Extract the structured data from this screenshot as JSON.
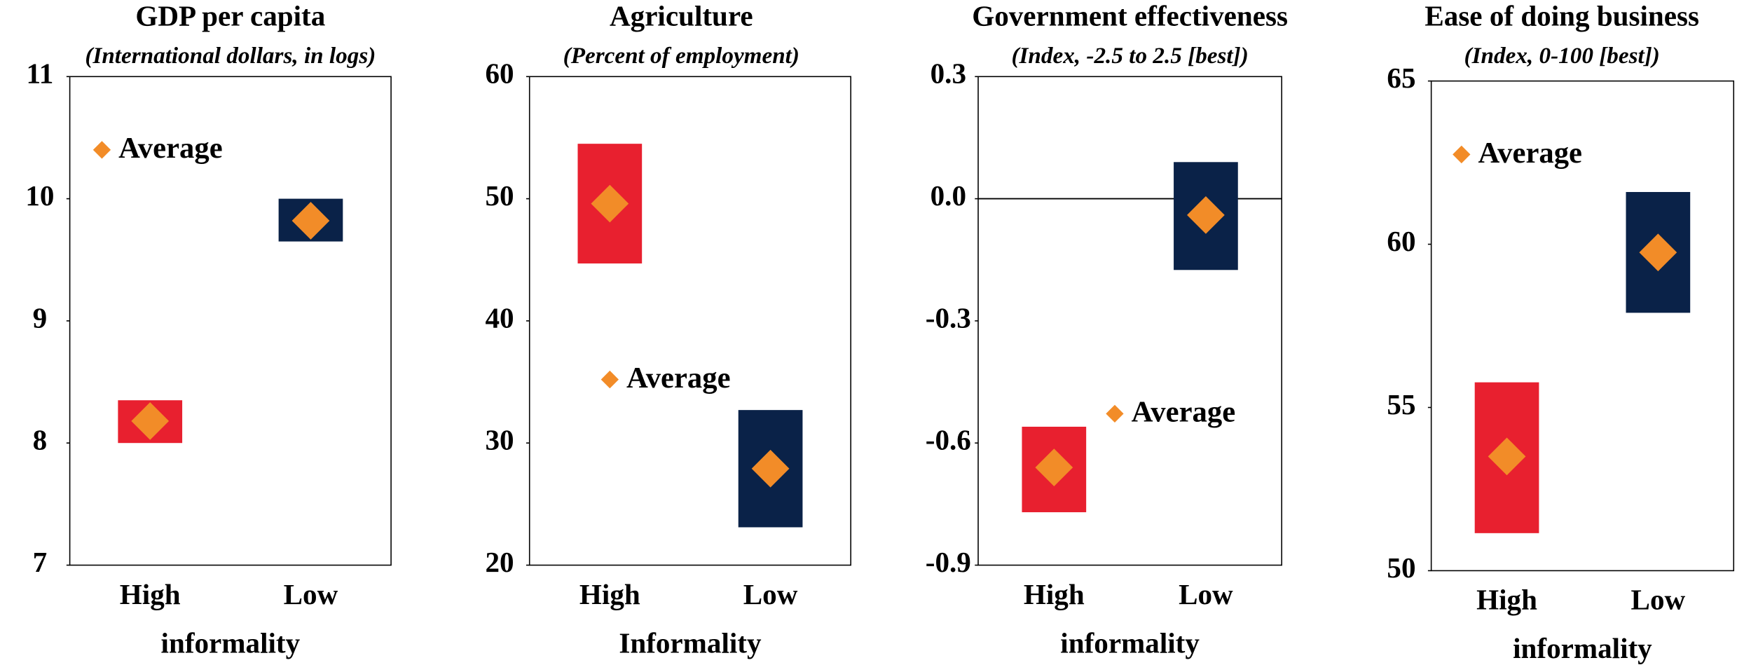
{
  "chart_data": [
    {
      "type": "range",
      "title": "GDP per capita",
      "subtitle": "(International dollars, in logs)",
      "categories": [
        "High",
        "Low"
      ],
      "xlabel": "informality",
      "ranges": [
        [
          8.0,
          8.35
        ],
        [
          9.65,
          10.0
        ]
      ],
      "colors": [
        "#e8202f",
        "#0a2248"
      ],
      "series": [
        {
          "name": "Average",
          "color": "#f28c28",
          "values": [
            8.18,
            9.82
          ]
        }
      ],
      "ylim": [
        7,
        11
      ],
      "yticks": [
        7,
        8,
        9,
        10,
        11
      ],
      "legend": "upper left"
    },
    {
      "type": "range",
      "title": "Agriculture",
      "subtitle": "(Percent of employment)",
      "categories": [
        "High",
        "Low"
      ],
      "xlabel": "Informality",
      "ranges": [
        [
          44.7,
          54.5
        ],
        [
          23.1,
          32.7
        ]
      ],
      "colors": [
        "#e8202f",
        "#0a2248"
      ],
      "series": [
        {
          "name": "Average",
          "color": "#f28c28",
          "values": [
            49.6,
            27.9
          ]
        }
      ],
      "ylim": [
        20,
        60
      ],
      "yticks": [
        20,
        30,
        40,
        50,
        60
      ],
      "legend": "center"
    },
    {
      "type": "range",
      "title": "Government effectiveness",
      "subtitle": "(Index, -2.5 to 2.5 [best])",
      "categories": [
        "High",
        "Low"
      ],
      "xlabel": "informality",
      "ranges": [
        [
          -0.77,
          -0.56
        ],
        [
          -0.175,
          0.09
        ]
      ],
      "colors": [
        "#e8202f",
        "#0a2248"
      ],
      "series": [
        {
          "name": "Average",
          "color": "#f28c28",
          "values": [
            -0.66,
            -0.04
          ]
        }
      ],
      "ylim": [
        -0.9,
        0.3
      ],
      "yticks": [
        -0.9,
        -0.6,
        -0.3,
        {
          "value": 0,
          "label": "0.0"
        },
        0.3
      ],
      "zero_line": true,
      "legend": "center right"
    },
    {
      "type": "range",
      "title": "Ease of doing business",
      "subtitle": "(Index, 0-100 [best])",
      "categories": [
        "High",
        "Low"
      ],
      "xlabel": "informality",
      "ranges": [
        [
          51.15,
          55.77
        ],
        [
          57.9,
          61.6
        ]
      ],
      "colors": [
        "#e8202f",
        "#0a2248"
      ],
      "series": [
        {
          "name": "Average",
          "color": "#f28c28",
          "values": [
            53.5,
            59.75
          ]
        }
      ],
      "ylim": [
        50,
        65
      ],
      "yticks": [
        50,
        55,
        60,
        65
      ],
      "legend": "upper left"
    }
  ]
}
